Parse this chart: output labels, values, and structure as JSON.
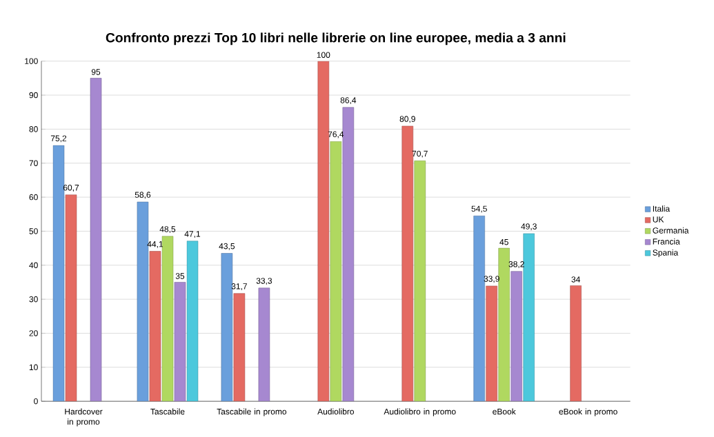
{
  "chart_data": {
    "type": "bar",
    "title": "Confronto prezzi Top 10 libri nelle librerie on line europee, media a 3 anni",
    "categories": [
      "Hardcover in promo",
      "Tascabile",
      "Tascabile in promo",
      "Audiolibro",
      "Audiolibro in promo",
      "eBook",
      "eBook in promo"
    ],
    "series": [
      {
        "name": "Italia",
        "color": "#6a9fdc",
        "values": [
          75.2,
          58.6,
          43.5,
          null,
          null,
          54.5,
          null
        ],
        "value_labels": [
          "75,2",
          "58,6",
          "43,5",
          null,
          null,
          "54,5",
          null
        ]
      },
      {
        "name": "UK",
        "color": "#e46a62",
        "values": [
          60.7,
          44.1,
          31.7,
          100,
          80.9,
          33.9,
          34
        ],
        "value_labels": [
          "60,7",
          "44,1",
          "31,7",
          "100",
          "80,9",
          "33,9",
          "34"
        ]
      },
      {
        "name": "Germania",
        "color": "#b0d860",
        "values": [
          null,
          48.5,
          null,
          76.4,
          70.7,
          45,
          null
        ],
        "value_labels": [
          null,
          "48,5",
          null,
          "76,4",
          "70,7",
          "45",
          null
        ]
      },
      {
        "name": "Francia",
        "color": "#a688d0",
        "values": [
          95,
          35,
          33.3,
          86.4,
          null,
          38.2,
          null
        ],
        "value_labels": [
          "95",
          "35",
          "33,3",
          "86,4",
          null,
          "38,2",
          null
        ]
      },
      {
        "name": "Spania",
        "color": "#4cc8dc",
        "values": [
          null,
          47.1,
          null,
          null,
          null,
          49.3,
          null
        ],
        "value_labels": [
          null,
          "47,1",
          null,
          null,
          null,
          "49,3",
          null
        ]
      }
    ],
    "ylim": [
      0,
      100
    ],
    "yticks": [
      0,
      10,
      20,
      30,
      40,
      50,
      60,
      70,
      80,
      90,
      100
    ],
    "grid": "y",
    "legend": "right"
  }
}
